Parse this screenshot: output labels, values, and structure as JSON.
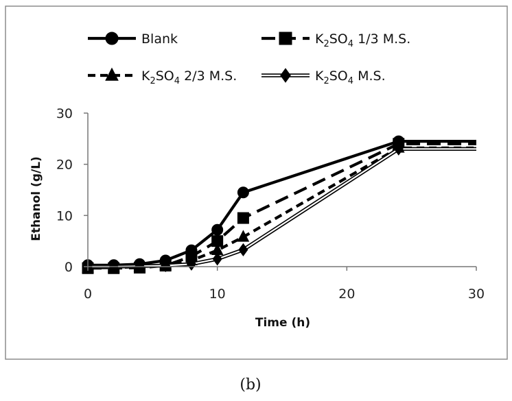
{
  "chart_data": {
    "type": "line",
    "xlabel": "Time (h)",
    "ylabel": "Ethanol (g/L)",
    "xlim": [
      0,
      30
    ],
    "ylim": [
      0,
      30
    ],
    "xticks": [
      "0",
      "10",
      "20",
      "30"
    ],
    "yticks": [
      "0",
      "10",
      "20",
      "30"
    ],
    "caption": "(b)",
    "grid": false,
    "legend_position": "top",
    "series": [
      {
        "name": "Blank",
        "label_parts": [
          "Blank"
        ],
        "marker": "circle",
        "line": "solid",
        "x": [
          0,
          2,
          4,
          6,
          8,
          10,
          12,
          24,
          30
        ],
        "y": [
          0.3,
          0.3,
          0.5,
          1.2,
          3.2,
          7.2,
          14.5,
          24.5,
          24.5
        ]
      },
      {
        "name": "K2SO4 1/3 M.S.",
        "label_parts": [
          "K",
          "2",
          "SO",
          "4",
          "  1/3  M.S."
        ],
        "marker": "square",
        "line": "dashed",
        "x": [
          0,
          2,
          4,
          6,
          8,
          10,
          12,
          24,
          30
        ],
        "y": [
          -0.3,
          -0.3,
          -0.2,
          0.2,
          2.0,
          5.0,
          9.5,
          24.0,
          24.0
        ]
      },
      {
        "name": "K2SO4 2/3 M.S.",
        "label_parts": [
          "K",
          "2",
          "SO",
          "4",
          "  2/3  M.S."
        ],
        "marker": "triangle",
        "line": "dashed-short",
        "x": [
          0,
          2,
          4,
          6,
          8,
          10,
          12,
          24,
          30
        ],
        "y": [
          -0.2,
          -0.2,
          0.0,
          0.3,
          1.2,
          3.2,
          5.8,
          23.2,
          23.2
        ]
      },
      {
        "name": "K2SO4 M.S.",
        "label_parts": [
          "K",
          "2",
          "SO",
          "4",
          "  M.S."
        ],
        "marker": "diamond",
        "line": "double",
        "x": [
          0,
          2,
          4,
          6,
          8,
          10,
          12,
          24,
          30
        ],
        "y": [
          0.0,
          0.0,
          0.1,
          0.2,
          0.5,
          1.5,
          3.3,
          23.0,
          23.0
        ]
      }
    ]
  }
}
